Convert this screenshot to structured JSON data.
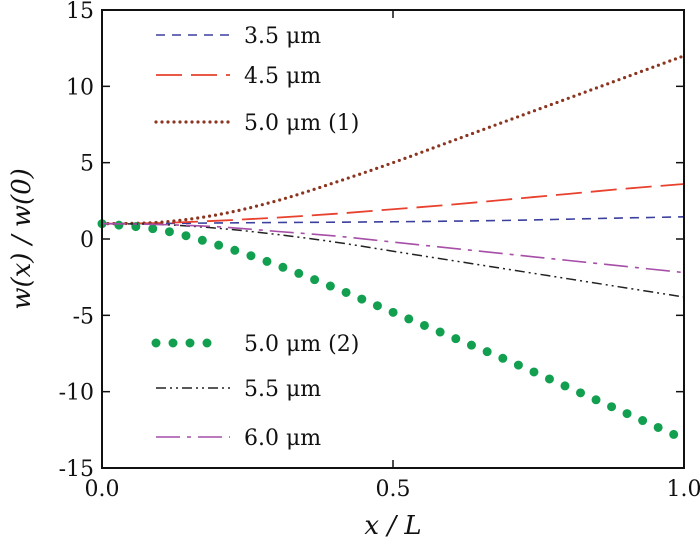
{
  "chart_data": {
    "type": "line",
    "xlabel": "x / L",
    "ylabel": "w(x) / w(0)",
    "xlim": [
      0,
      1
    ],
    "ylim": [
      -15,
      15
    ],
    "xticks": [
      0.0,
      0.5,
      1.0
    ],
    "xtick_labels": [
      "0.0",
      "0.5",
      "1.0"
    ],
    "yticks": [
      15,
      10,
      5,
      0,
      -5,
      -10,
      -15
    ],
    "ytick_labels": [
      "15",
      "10",
      "5",
      "0",
      "-5",
      "-10",
      "-15"
    ],
    "grid": false,
    "series": [
      {
        "name": "3.5 μm",
        "color": "#3b3f9e",
        "style": "dash",
        "x": [
          0,
          0.1,
          0.2,
          0.3,
          0.4,
          0.5,
          0.6,
          0.7,
          0.8,
          0.9,
          1.0
        ],
        "y": [
          1.0,
          1.02,
          1.05,
          1.08,
          1.1,
          1.13,
          1.17,
          1.22,
          1.3,
          1.38,
          1.45
        ]
      },
      {
        "name": "4.5 μm",
        "color": "#e8412e",
        "style": "longdash",
        "x": [
          0,
          0.1,
          0.2,
          0.3,
          0.4,
          0.5,
          0.6,
          0.7,
          0.8,
          0.9,
          1.0
        ],
        "y": [
          1.0,
          1.05,
          1.2,
          1.4,
          1.65,
          1.95,
          2.25,
          2.6,
          2.95,
          3.3,
          3.6
        ]
      },
      {
        "name": "5.0 μm (1)",
        "color": "#8b3520",
        "style": "dot",
        "x": [
          0,
          0.1,
          0.2,
          0.3,
          0.4,
          0.5,
          0.6,
          0.7,
          0.8,
          0.9,
          1.0
        ],
        "y": [
          1.0,
          1.1,
          1.6,
          2.5,
          3.7,
          5.0,
          6.4,
          7.8,
          9.2,
          10.6,
          12.0
        ]
      },
      {
        "name": "5.0 μm (2)",
        "color": "#12a050",
        "style": "bigdot",
        "x": [
          0,
          0.1,
          0.2,
          0.3,
          0.4,
          0.5,
          0.6,
          0.7,
          0.8,
          0.9,
          1.0
        ],
        "y": [
          1.0,
          0.6,
          -0.4,
          -1.7,
          -3.2,
          -4.8,
          -6.4,
          -8.0,
          -9.7,
          -11.4,
          -13.1
        ]
      },
      {
        "name": "5.5 μm",
        "color": "#222222",
        "style": "dashdotdot",
        "x": [
          0,
          0.1,
          0.2,
          0.3,
          0.4,
          0.5,
          0.6,
          0.7,
          0.8,
          0.9,
          1.0
        ],
        "y": [
          1.0,
          0.95,
          0.7,
          0.3,
          -0.2,
          -0.8,
          -1.4,
          -2.0,
          -2.6,
          -3.2,
          -3.8
        ]
      },
      {
        "name": "6.0 μm",
        "color": "#a64ea8",
        "style": "dashdot",
        "x": [
          0,
          0.1,
          0.2,
          0.3,
          0.4,
          0.5,
          0.6,
          0.7,
          0.8,
          0.9,
          1.0
        ],
        "y": [
          1.0,
          0.95,
          0.8,
          0.5,
          0.2,
          -0.2,
          -0.6,
          -1.0,
          -1.4,
          -1.8,
          -2.2
        ]
      }
    ]
  }
}
